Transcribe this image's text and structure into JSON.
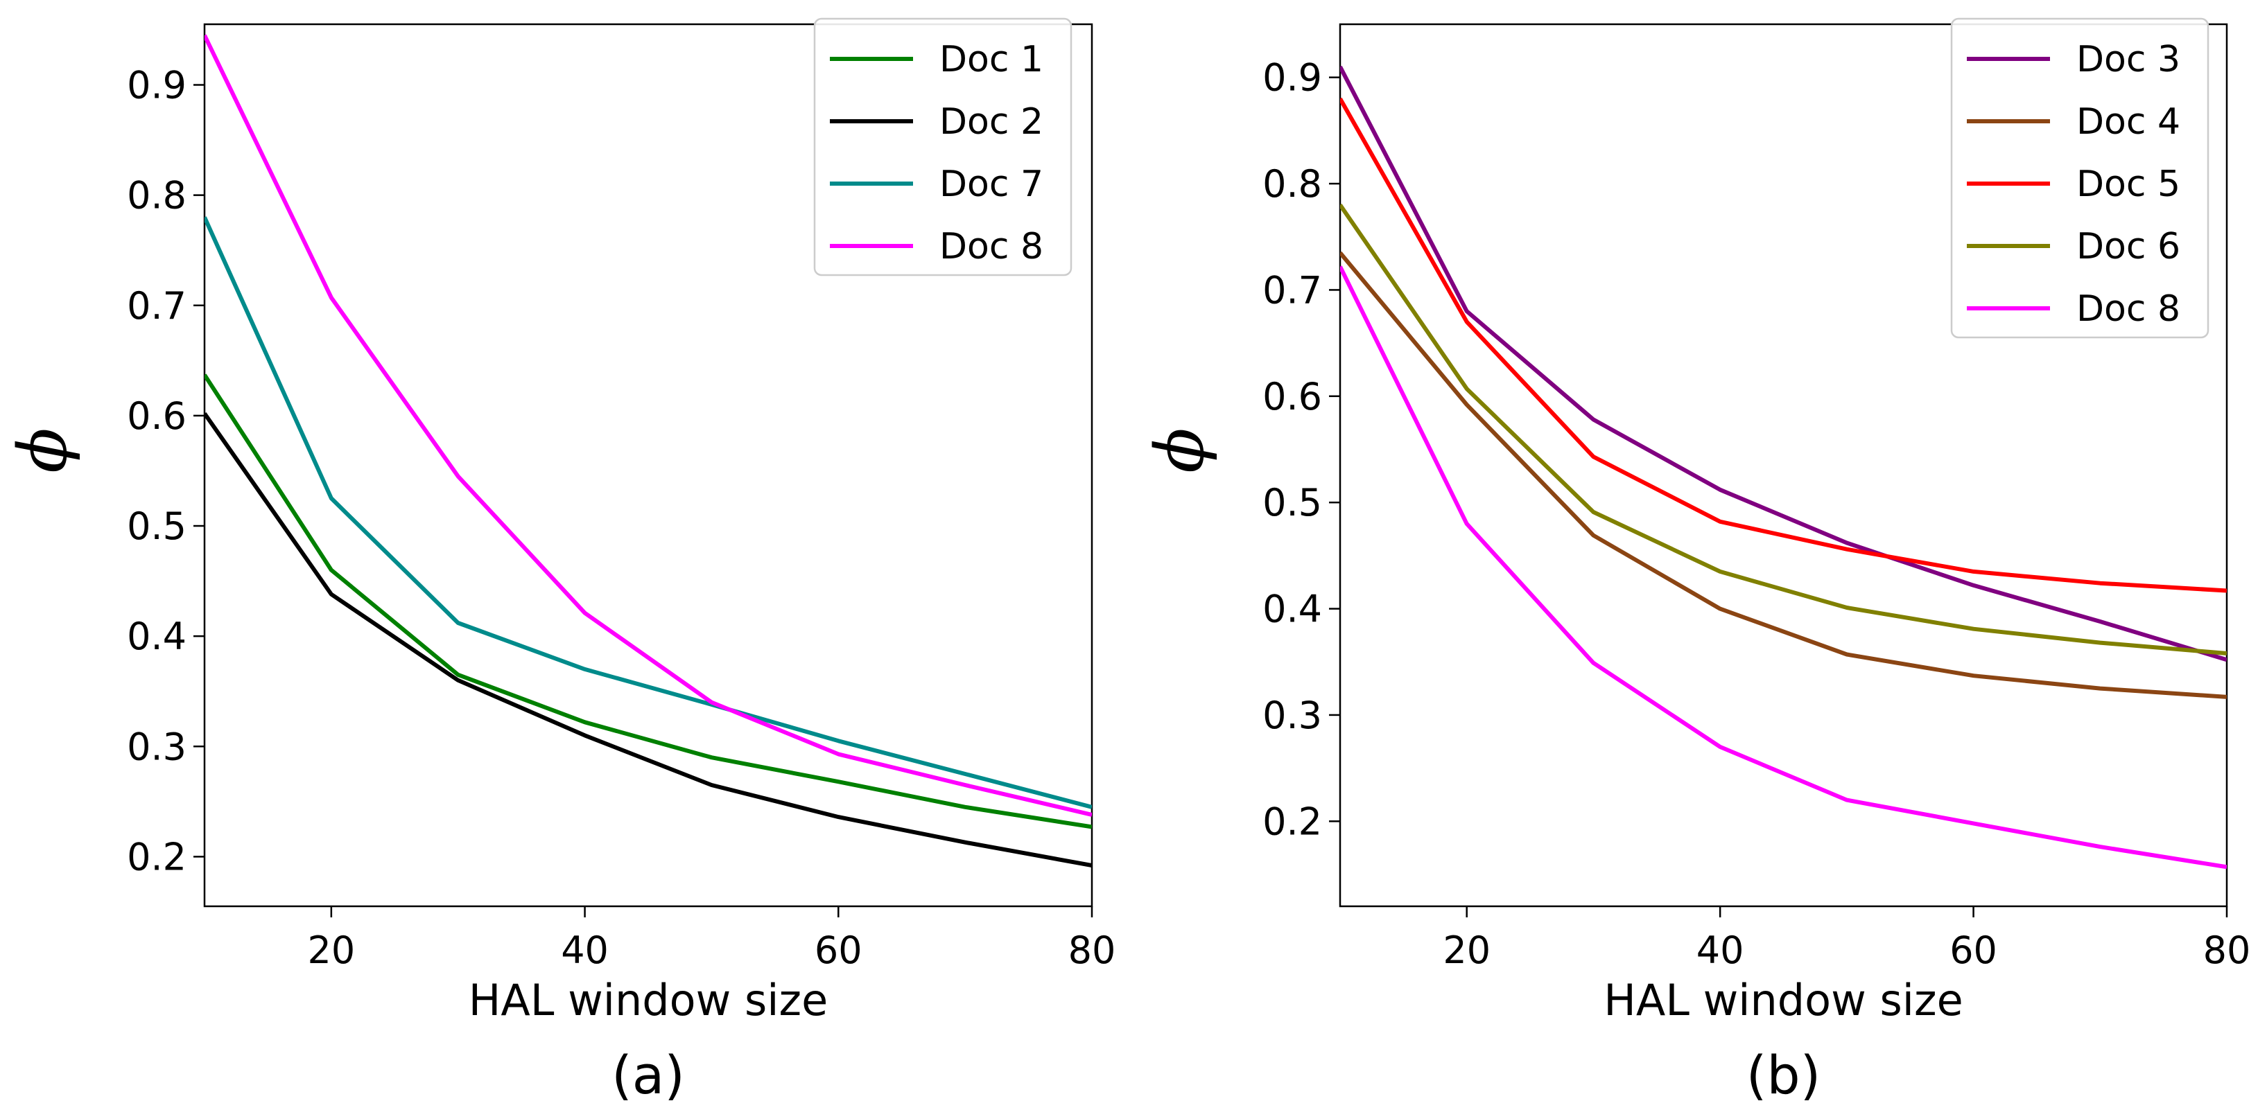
{
  "chart_data": [
    {
      "type": "line",
      "caption": "(a)",
      "xlabel": "HAL window size",
      "ylabel": "ϕ",
      "xlim": [
        10,
        80
      ],
      "ylim": [
        0.155,
        0.955
      ],
      "xticks": [
        20,
        40,
        60,
        80
      ],
      "xtick_labels": [
        "20",
        "40",
        "60",
        "80"
      ],
      "yticks": [
        0.2,
        0.3,
        0.4,
        0.5,
        0.6,
        0.7,
        0.8,
        0.9
      ],
      "ytick_labels": [
        "0.2",
        "0.3",
        "0.4",
        "0.5",
        "0.6",
        "0.7",
        "0.8",
        "0.9"
      ],
      "grid": false,
      "legend_position": "top-right",
      "x": [
        10,
        20,
        30,
        40,
        50,
        60,
        70,
        80
      ],
      "series": [
        {
          "name": "Doc 1",
          "color": "#008000",
          "values": [
            0.637,
            0.46,
            0.365,
            0.322,
            0.29,
            0.268,
            0.245,
            0.227
          ]
        },
        {
          "name": "Doc 2",
          "color": "#000000",
          "values": [
            0.602,
            0.438,
            0.36,
            0.31,
            0.265,
            0.236,
            0.213,
            0.192
          ]
        },
        {
          "name": "Doc 7",
          "color": "#008b8b",
          "values": [
            0.78,
            0.525,
            0.412,
            0.37,
            0.338,
            0.305,
            0.275,
            0.245
          ]
        },
        {
          "name": "Doc 8",
          "color": "#ff00ff",
          "values": [
            0.945,
            0.707,
            0.545,
            0.421,
            0.34,
            0.293,
            0.265,
            0.238
          ]
        }
      ]
    },
    {
      "type": "line",
      "caption": "(b)",
      "xlabel": "HAL window size",
      "ylabel": "ϕ",
      "xlim": [
        10,
        80
      ],
      "ylim": [
        0.12,
        0.95
      ],
      "xticks": [
        20,
        40,
        60,
        80
      ],
      "xtick_labels": [
        "20",
        "40",
        "60",
        "80"
      ],
      "yticks": [
        0.2,
        0.3,
        0.4,
        0.5,
        0.6,
        0.7,
        0.8,
        0.9
      ],
      "ytick_labels": [
        "0.2",
        "0.3",
        "0.4",
        "0.5",
        "0.6",
        "0.7",
        "0.8",
        "0.9"
      ],
      "grid": false,
      "legend_position": "top-right",
      "x": [
        10,
        20,
        30,
        40,
        50,
        60,
        70,
        80
      ],
      "series": [
        {
          "name": "Doc 3",
          "color": "#800080",
          "values": [
            0.91,
            0.68,
            0.578,
            0.512,
            0.462,
            0.422,
            0.388,
            0.352
          ]
        },
        {
          "name": "Doc 4",
          "color": "#8b4513",
          "values": [
            0.735,
            0.592,
            0.469,
            0.4,
            0.357,
            0.337,
            0.325,
            0.317
          ]
        },
        {
          "name": "Doc 5",
          "color": "#ff0000",
          "values": [
            0.88,
            0.67,
            0.543,
            0.482,
            0.456,
            0.435,
            0.424,
            0.417
          ]
        },
        {
          "name": "Doc 6",
          "color": "#808000",
          "values": [
            0.78,
            0.607,
            0.491,
            0.435,
            0.401,
            0.381,
            0.368,
            0.358
          ]
        },
        {
          "name": "Doc 8",
          "color": "#ff00ff",
          "values": [
            0.722,
            0.48,
            0.349,
            0.27,
            0.22,
            0.198,
            0.176,
            0.157
          ]
        }
      ]
    }
  ]
}
